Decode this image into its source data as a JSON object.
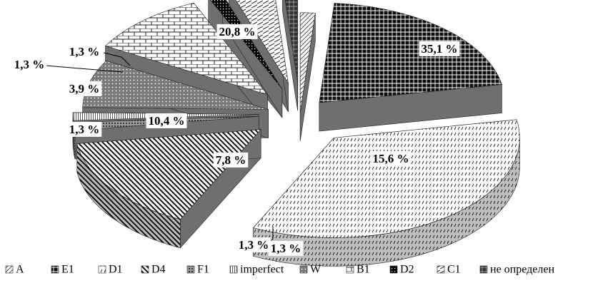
{
  "chart_data": {
    "type": "pie",
    "style": "3d-exploded",
    "colors": {
      "ink": "#111111",
      "paper": "#ffffff",
      "mid": "#8a8a8a"
    },
    "slices": [
      {
        "name": "A",
        "value": 1.3,
        "label": "1,3 %",
        "pattern": "pat-a"
      },
      {
        "name": "E1",
        "value": 20.8,
        "label": "20,8 %",
        "pattern": "pat-e1"
      },
      {
        "name": "D1",
        "value": 35.1,
        "label": "35,1 %",
        "pattern": "pat-d1"
      },
      {
        "name": "D4",
        "value": 15.6,
        "label": "15,6 %",
        "pattern": "pat-d4"
      },
      {
        "name": "F1",
        "value": 1.3,
        "label": "1,3 %",
        "pattern": "pat-f1"
      },
      {
        "name": "imperfect",
        "value": 1.3,
        "label": "1,3 %",
        "pattern": "pat-imp"
      },
      {
        "name": "W",
        "value": 7.8,
        "label": "7,8 %",
        "pattern": "pat-w"
      },
      {
        "name": "B1",
        "value": 10.4,
        "label": "10,4 %",
        "pattern": "pat-b1"
      },
      {
        "name": "D2",
        "value": 1.3,
        "label": "1,3 %",
        "pattern": "pat-d2"
      },
      {
        "name": "C1",
        "value": 3.9,
        "label": "3,9 %",
        "pattern": "pat-c1"
      },
      {
        "name": "не определен",
        "value": 1.3,
        "label": "1,3 %",
        "pattern": "pat-ne"
      }
    ],
    "legend": [
      "A",
      "E1",
      "D1",
      "D4",
      "F1",
      "imperfect",
      "W",
      "B1",
      "D2",
      "C1",
      "не определен"
    ],
    "legend_position": "bottom"
  }
}
